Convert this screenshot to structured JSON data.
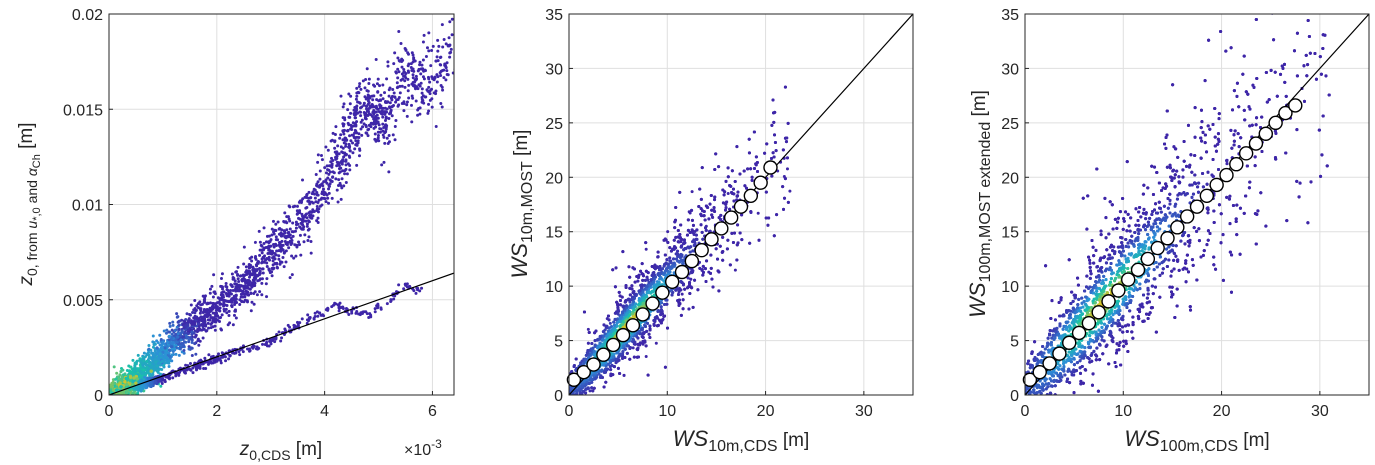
{
  "figure": {
    "colors": {
      "density_low": "#3e26a8",
      "density_mid": "#2d8fd8",
      "density_high": "#19c3a8",
      "density_peak": "#e6c51d",
      "reference_line": "#000000",
      "bin_marker_fill": "#ffffff",
      "bin_marker_edge": "#000000",
      "grid": "#dfdfdf"
    }
  },
  "chart_data": [
    {
      "type": "scatter",
      "density_colored": true,
      "xlabel": "z0,CDS [m]",
      "ylabel": "z0, from u*,0 and αCh [m]",
      "x_exponent_label": "×10-3",
      "xlim": [
        0,
        0.0064
      ],
      "ylim": [
        0,
        0.02
      ],
      "xticks": [
        0,
        0.002,
        0.004,
        0.006
      ],
      "xtick_labels": [
        "0",
        "2",
        "4",
        "6"
      ],
      "yticks": [
        0,
        0.005,
        0.01,
        0.015,
        0.02
      ],
      "ytick_labels": [
        "0",
        "0.005",
        "0.01",
        "0.015",
        "0.02"
      ],
      "grid": true,
      "reference_line": {
        "x": [
          0,
          0.0064
        ],
        "y": [
          0,
          0.0064
        ]
      },
      "upper_branch": [
        [
          0.0002,
          0.0002
        ],
        [
          0.0005,
          0.0008
        ],
        [
          0.0008,
          0.0016
        ],
        [
          0.001,
          0.0022
        ],
        [
          0.0013,
          0.003
        ],
        [
          0.0016,
          0.0037
        ],
        [
          0.002,
          0.0045
        ],
        [
          0.0024,
          0.0055
        ],
        [
          0.0027,
          0.0063
        ],
        [
          0.003,
          0.0075
        ],
        [
          0.0034,
          0.0087
        ],
        [
          0.0038,
          0.01
        ],
        [
          0.0042,
          0.012
        ],
        [
          0.0045,
          0.0138
        ],
        [
          0.0048,
          0.0155
        ],
        [
          0.0051,
          0.0142
        ],
        [
          0.0055,
          0.0172
        ],
        [
          0.0059,
          0.0158
        ],
        [
          0.0064,
          0.018
        ]
      ],
      "lower_branch": [
        [
          0.0005,
          0.0004
        ],
        [
          0.001,
          0.0009
        ],
        [
          0.0015,
          0.0014
        ],
        [
          0.002,
          0.0019
        ],
        [
          0.0025,
          0.0024
        ],
        [
          0.003,
          0.0028
        ],
        [
          0.0034,
          0.0035
        ],
        [
          0.0039,
          0.0042
        ],
        [
          0.0042,
          0.0047
        ],
        [
          0.0048,
          0.0042
        ],
        [
          0.0055,
          0.0057
        ],
        [
          0.0058,
          0.0055
        ]
      ]
    },
    {
      "type": "scatter",
      "density_colored": true,
      "xlabel": "WS10m,CDS [m]",
      "ylabel": "WS10m,MOST [m]",
      "xlim": [
        0,
        35
      ],
      "ylim": [
        0,
        35
      ],
      "xticks": [
        0,
        10,
        20,
        30
      ],
      "xtick_labels": [
        "0",
        "10",
        "20",
        "30"
      ],
      "yticks": [
        0,
        5,
        10,
        15,
        20,
        25,
        30,
        35
      ],
      "ytick_labels": [
        "0",
        "5",
        "10",
        "15",
        "20",
        "25",
        "30",
        "35"
      ],
      "grid": true,
      "reference_line": {
        "x": [
          0,
          35
        ],
        "y": [
          0,
          35
        ]
      },
      "data_extent_x": [
        0,
        22.5
      ],
      "spread": 1.4,
      "bin_means": {
        "x": [
          0.5,
          1.5,
          2.5,
          3.5,
          4.5,
          5.5,
          6.5,
          7.5,
          8.5,
          9.5,
          10.5,
          11.5,
          12.5,
          13.5,
          14.5,
          15.5,
          16.5,
          17.5,
          18.5,
          19.5,
          20.5
        ],
        "y": [
          1.4,
          2.1,
          2.8,
          3.7,
          4.6,
          5.5,
          6.4,
          7.4,
          8.4,
          9.4,
          10.4,
          11.3,
          12.3,
          13.3,
          14.3,
          15.3,
          16.3,
          17.3,
          18.3,
          19.5,
          20.9
        ]
      }
    },
    {
      "type": "scatter",
      "density_colored": true,
      "xlabel": "WS100m,CDS [m]",
      "ylabel": "WS100m,MOST extended [m]",
      "xlim": [
        0,
        35
      ],
      "ylim": [
        0,
        35
      ],
      "xticks": [
        0,
        10,
        20,
        30
      ],
      "xtick_labels": [
        "0",
        "10",
        "20",
        "30"
      ],
      "yticks": [
        0,
        5,
        10,
        15,
        20,
        25,
        30,
        35
      ],
      "ytick_labels": [
        "0",
        "5",
        "10",
        "15",
        "20",
        "25",
        "30",
        "35"
      ],
      "grid": true,
      "reference_line": {
        "x": [
          0,
          35
        ],
        "y": [
          0,
          35
        ]
      },
      "data_extent_x": [
        0,
        31
      ],
      "spread": 2.2,
      "bin_means": {
        "x": [
          0.5,
          1.5,
          2.5,
          3.5,
          4.5,
          5.5,
          6.5,
          7.5,
          8.5,
          9.5,
          10.5,
          11.5,
          12.5,
          13.5,
          14.5,
          15.5,
          16.5,
          17.5,
          18.5,
          19.5,
          20.5,
          21.5,
          22.5,
          23.5,
          24.5,
          25.5,
          26.5,
          27.5
        ],
        "y": [
          1.4,
          2.1,
          2.9,
          3.8,
          4.8,
          5.7,
          6.6,
          7.6,
          8.6,
          9.6,
          10.6,
          11.5,
          12.5,
          13.5,
          14.4,
          15.4,
          16.4,
          17.3,
          18.3,
          19.3,
          20.2,
          21.2,
          22.2,
          23.1,
          24.0,
          25.0,
          25.9,
          26.6
        ]
      }
    }
  ]
}
